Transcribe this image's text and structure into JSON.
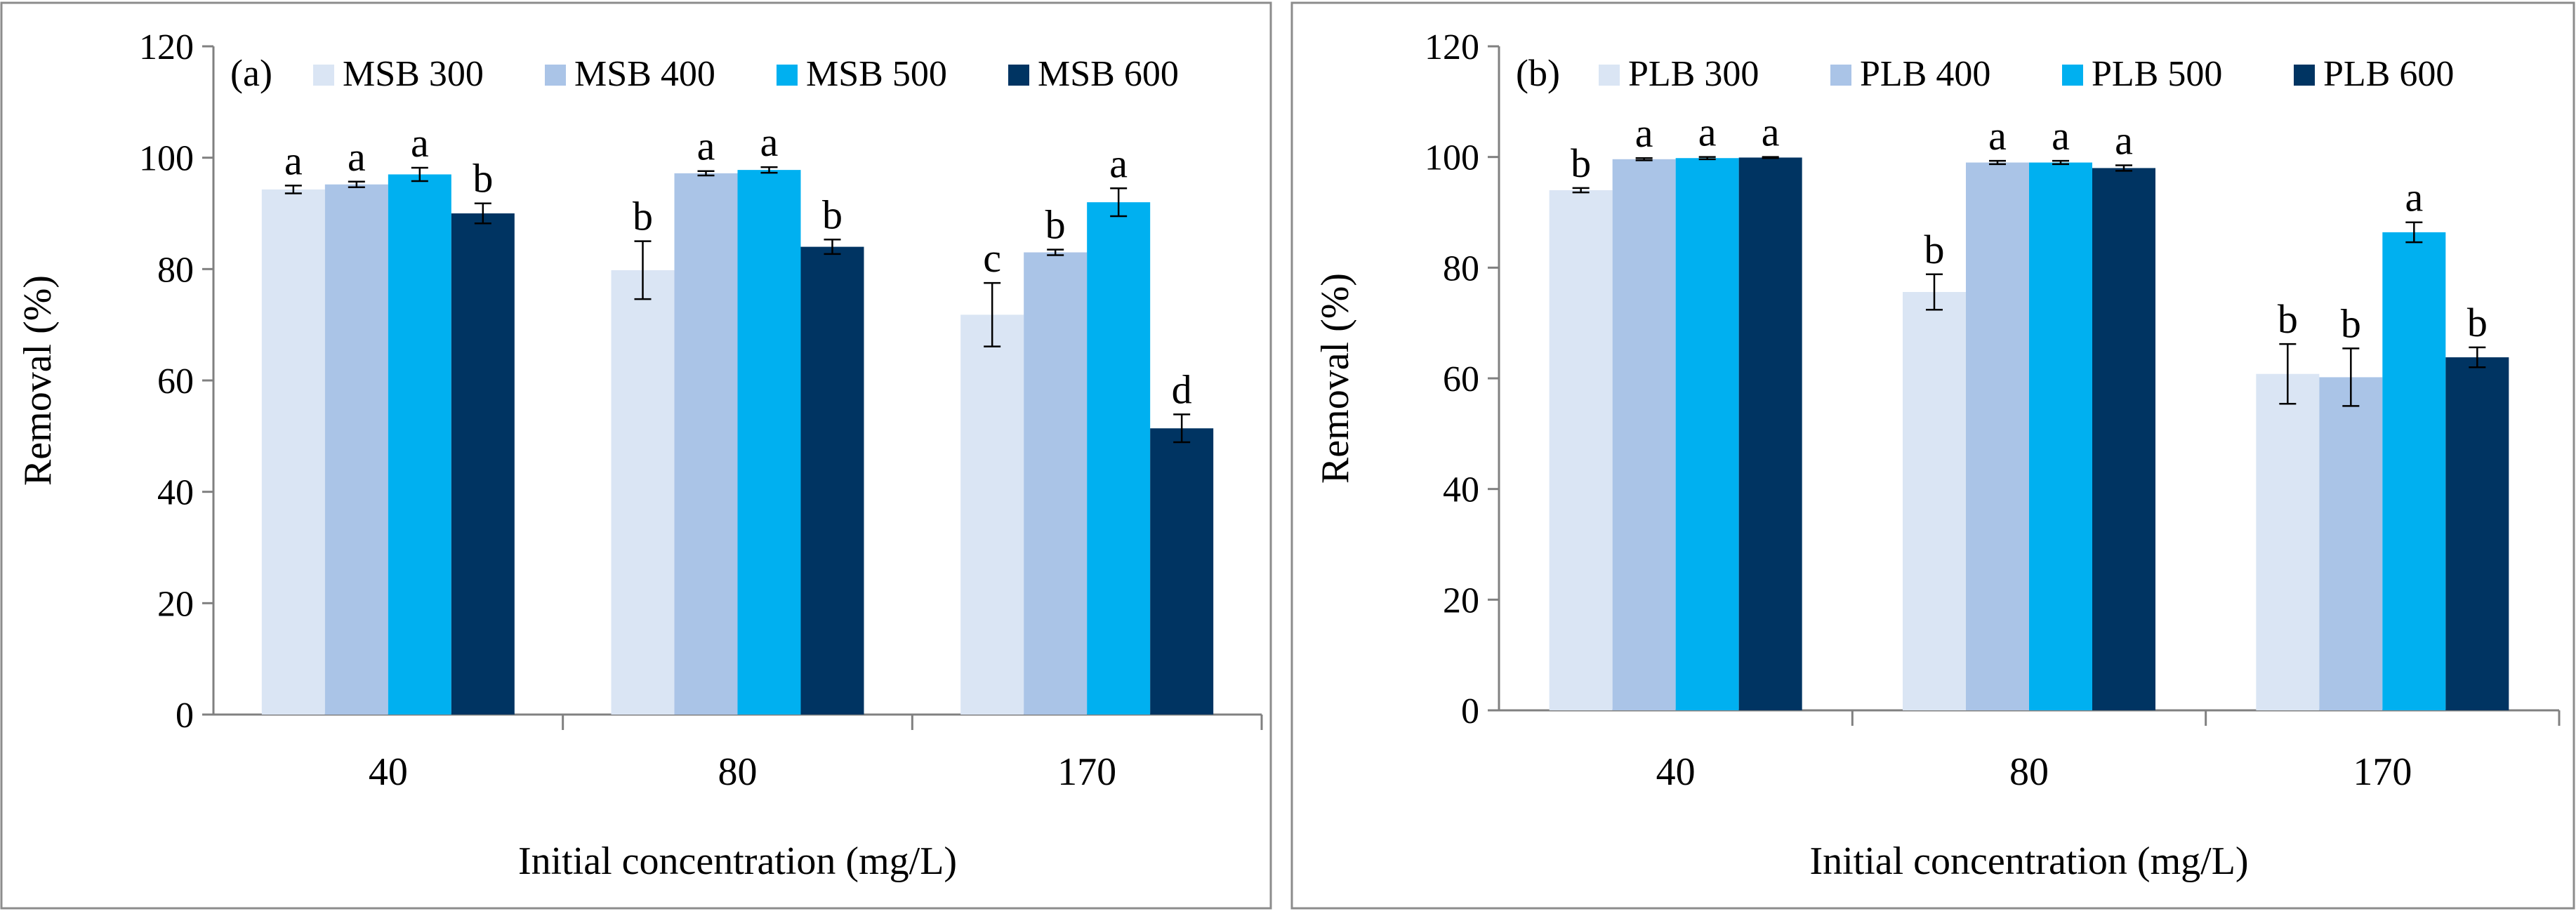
{
  "chart_data": [
    {
      "type": "bar",
      "panel_label": "(a)",
      "categories": [
        "40",
        "80",
        "170"
      ],
      "xlabel": "Initial concentration (mg/L)",
      "ylabel": "Removal (%)",
      "ylim": [
        0,
        120
      ],
      "yticks": [
        "0",
        "20",
        "40",
        "60",
        "80",
        "100",
        "120"
      ],
      "legend_position": "top",
      "grid": false,
      "series": [
        {
          "name": "MSB 300",
          "color": "#dae5f4",
          "values": [
            94.3,
            79.8,
            71.8
          ],
          "errors": [
            0.7,
            5.2,
            5.7
          ],
          "letters": [
            "a",
            "b",
            "c"
          ]
        },
        {
          "name": "MSB 400",
          "color": "#aac4e7",
          "values": [
            95.2,
            97.2,
            83.0
          ],
          "errors": [
            0.5,
            0.4,
            0.5
          ],
          "letters": [
            "a",
            "a",
            "b"
          ]
        },
        {
          "name": "MSB 500",
          "color": "#00b0f0",
          "values": [
            97.0,
            97.8,
            92.0
          ],
          "errors": [
            1.2,
            0.5,
            2.5
          ],
          "letters": [
            "a",
            "a",
            "a"
          ]
        },
        {
          "name": "MSB 600",
          "color": "#003462",
          "values": [
            90.0,
            84.0,
            51.4
          ],
          "errors": [
            1.8,
            1.3,
            2.5
          ],
          "letters": [
            "b",
            "b",
            "d"
          ]
        }
      ]
    },
    {
      "type": "bar",
      "panel_label": "(b)",
      "categories": [
        "40",
        "80",
        "170"
      ],
      "xlabel": "Initial concentration (mg/L)",
      "ylabel": "Removal (%)",
      "ylim": [
        0,
        120
      ],
      "yticks": [
        "0",
        "20",
        "40",
        "60",
        "80",
        "100",
        "120"
      ],
      "legend_position": "top",
      "grid": false,
      "series": [
        {
          "name": "PLB 300",
          "color": "#dae5f4",
          "values": [
            94.0,
            75.6,
            60.8
          ],
          "errors": [
            0.4,
            3.2,
            5.4
          ],
          "letters": [
            "b",
            "b",
            "b"
          ]
        },
        {
          "name": "PLB 400",
          "color": "#aac4e7",
          "values": [
            99.6,
            99.0,
            60.2
          ],
          "errors": [
            0.2,
            0.3,
            5.2
          ],
          "letters": [
            "a",
            "a",
            "b"
          ]
        },
        {
          "name": "PLB 500",
          "color": "#00b0f0",
          "values": [
            99.8,
            99.0,
            86.4
          ],
          "errors": [
            0.2,
            0.3,
            1.8
          ],
          "letters": [
            "a",
            "a",
            "a"
          ]
        },
        {
          "name": "PLB 600",
          "color": "#003462",
          "values": [
            99.9,
            98.0,
            63.8
          ],
          "errors": [
            0.1,
            0.5,
            1.8
          ],
          "letters": [
            "a",
            "a",
            "b"
          ]
        }
      ]
    }
  ]
}
